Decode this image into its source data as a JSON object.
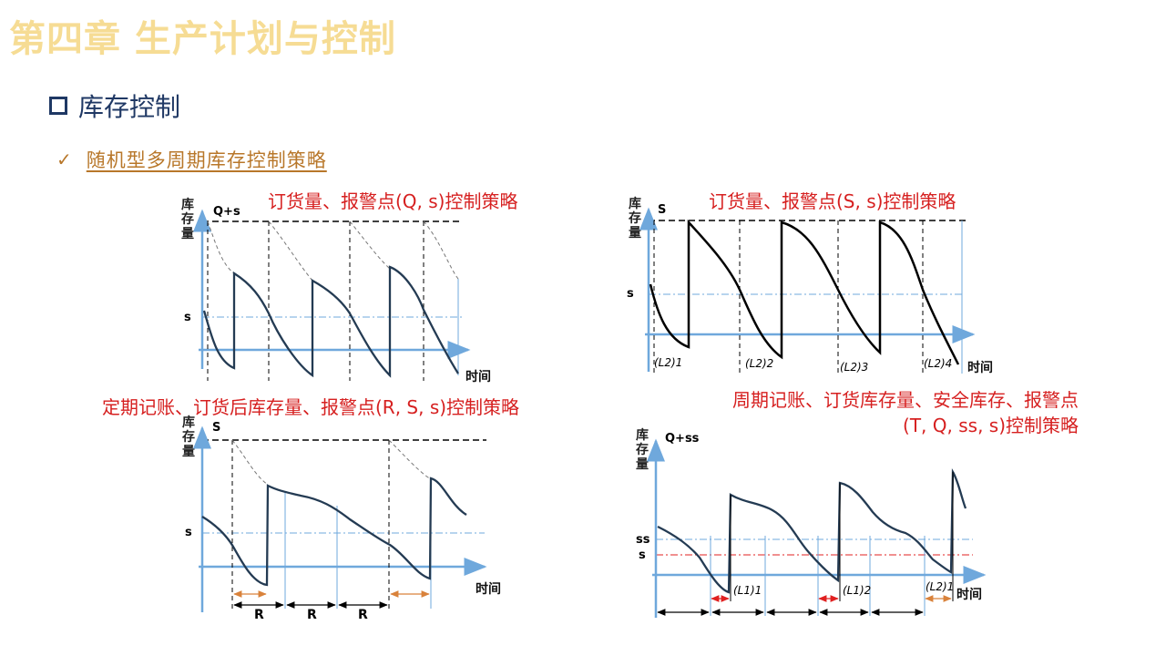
{
  "header": {
    "chapter_title": "第四章  生产计划与控制"
  },
  "section": {
    "title": "库存控制"
  },
  "subsection": {
    "title": "随机型多周期库存控制策略"
  },
  "labels": {
    "y_axis": [
      "库",
      "存",
      "量"
    ],
    "time": "时间"
  },
  "diagrams": [
    {
      "title": "订货量、报警点(Q, s)控制策略",
      "top_level": "Q+s",
      "reorder_level": "s"
    },
    {
      "title": "订货量、报警点(S, s)控制策略",
      "top_level": "S",
      "reorder_level": "s",
      "leadtimes": [
        "(L2)1",
        "(L2)2",
        "(L2)3",
        "(L2)4"
      ]
    },
    {
      "title": "定期记账、订货后库存量、报警点(R, S, s)控制策略",
      "top_level": "S",
      "reorder_level": "s",
      "period_labels": [
        "R",
        "R",
        "R"
      ]
    },
    {
      "title_lines": [
        "周期记账、订货库存量、安全库存、报警点",
        "(T, Q, ss, s)控制策略"
      ],
      "top_level": "Q+ss",
      "safety_level": "ss",
      "reorder_level": "s",
      "leadtimes": [
        "(L1)1",
        "(L1)2",
        "(L2)1"
      ]
    }
  ]
}
